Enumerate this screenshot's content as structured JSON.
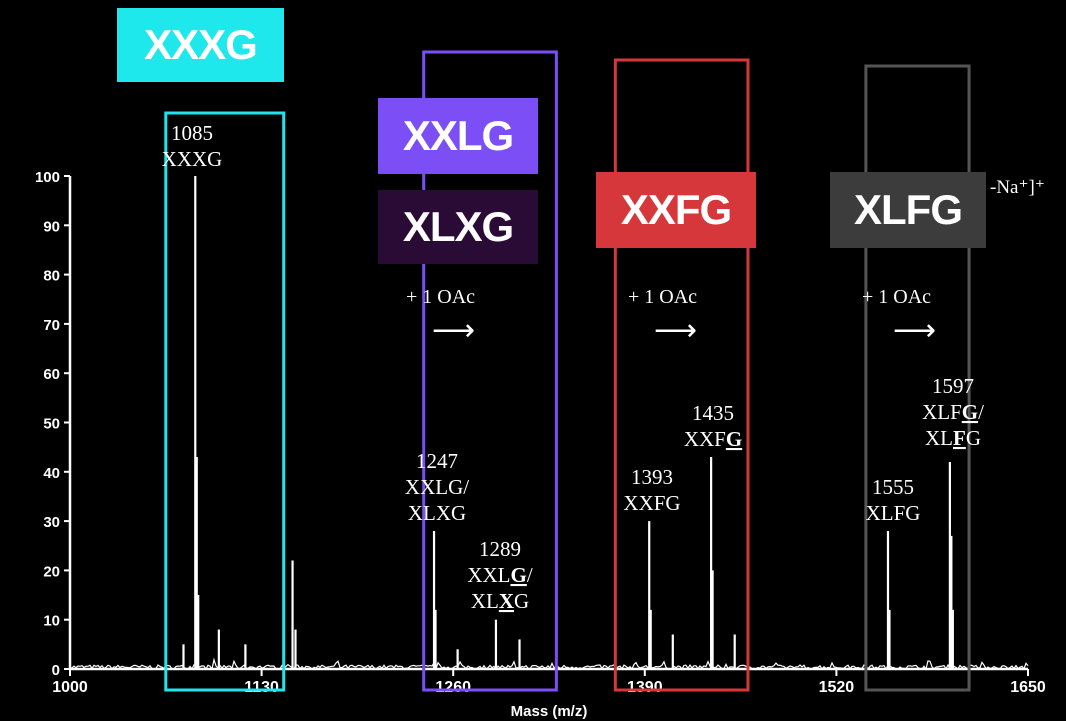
{
  "chart_data": {
    "type": "line",
    "title": "",
    "xlabel": "Mass (m/z)",
    "ylabel": "",
    "xlim": [
      1000,
      1650
    ],
    "ylim": [
      0,
      100
    ],
    "x_ticks": [
      "1000",
      "1130",
      "1260",
      "1390",
      "1520",
      "1650"
    ],
    "y_ticks": [
      "0",
      "10",
      "20",
      "30",
      "40",
      "50",
      "60",
      "70",
      "80",
      "90",
      "100"
    ],
    "color": "#ffffff",
    "peaks": [
      {
        "x": 1077,
        "y": 5
      },
      {
        "x": 1085,
        "y": 100,
        "label": [
          "1085",
          "XXXG"
        ]
      },
      {
        "x": 1086,
        "y": 43
      },
      {
        "x": 1087,
        "y": 15
      },
      {
        "x": 1101,
        "y": 8
      },
      {
        "x": 1119,
        "y": 5
      },
      {
        "x": 1151,
        "y": 22
      },
      {
        "x": 1153,
        "y": 8
      },
      {
        "x": 1247,
        "y": 28,
        "label": [
          "1247",
          "XXLG/",
          "XLXG"
        ]
      },
      {
        "x": 1248,
        "y": 12
      },
      {
        "x": 1263,
        "y": 4
      },
      {
        "x": 1289,
        "y": 10,
        "label": [
          "1289",
          "XXLG/",
          "XLXG"
        ],
        "underline": [
          3,
          2
        ]
      },
      {
        "x": 1305,
        "y": 6
      },
      {
        "x": 1393,
        "y": 30,
        "label": [
          "1393",
          "XXFG"
        ]
      },
      {
        "x": 1394,
        "y": 12
      },
      {
        "x": 1409,
        "y": 7
      },
      {
        "x": 1435,
        "y": 43,
        "label": [
          "1435",
          "XXFG"
        ],
        "underline": [
          3
        ]
      },
      {
        "x": 1436,
        "y": 20
      },
      {
        "x": 1451,
        "y": 7
      },
      {
        "x": 1555,
        "y": 28,
        "label": [
          "1555",
          "XLFG"
        ]
      },
      {
        "x": 1556,
        "y": 12
      },
      {
        "x": 1597,
        "y": 42,
        "label": [
          "1597",
          "XLFG/",
          "XLFG"
        ],
        "underline": [
          3,
          2
        ]
      },
      {
        "x": 1598,
        "y": 27
      },
      {
        "x": 1599,
        "y": 12
      }
    ],
    "boxes": [
      {
        "x0": 1065,
        "x1": 1145,
        "y_top": 113,
        "color": "#22e4ea"
      },
      {
        "x0": 1240,
        "x1": 1330,
        "y_top": 52,
        "color": "#7b4ff5"
      },
      {
        "x0": 1370,
        "x1": 1460,
        "y_top": 60,
        "color": "#d6373a"
      },
      {
        "x0": 1540,
        "x1": 1610,
        "y_top": 66,
        "color": "#555555"
      }
    ]
  },
  "tags": [
    {
      "text": "XXXG",
      "bg": "#1ee8ec"
    },
    {
      "text": "XXLG",
      "bg": "#7b4ff5"
    },
    {
      "text": "XLXG",
      "bg": "#2a0b35"
    },
    {
      "text": "XXFG",
      "bg": "#d6373a"
    },
    {
      "text": "XLFG",
      "bg": "#3c3c3c"
    }
  ],
  "notes": {
    "oac": "+ 1 OAc",
    "arrow": "⟶",
    "ion": "-Na⁺]⁺"
  }
}
